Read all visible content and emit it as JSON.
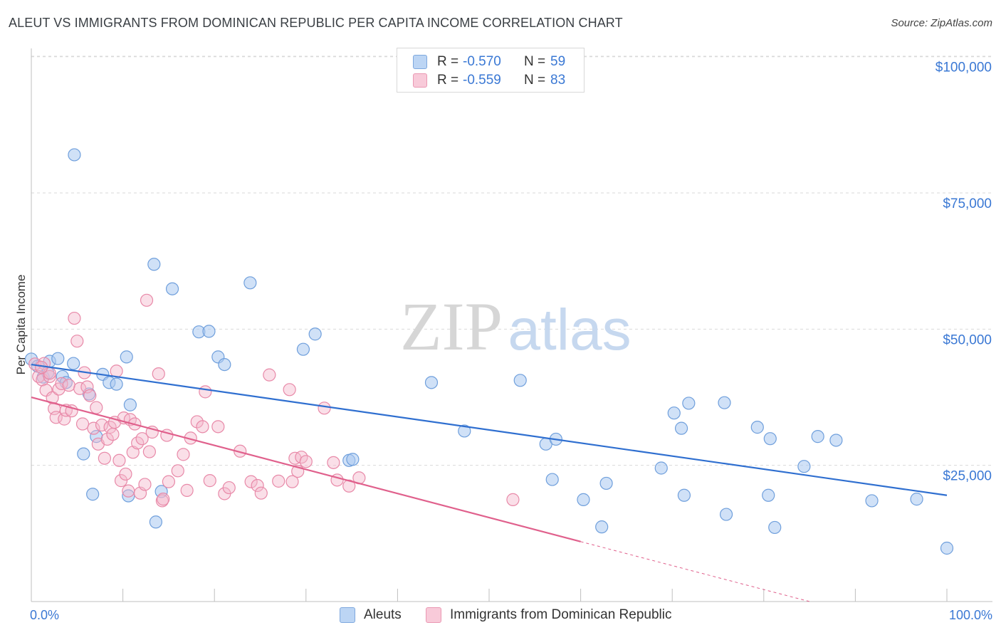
{
  "title": "ALEUT VS IMMIGRANTS FROM DOMINICAN REPUBLIC PER CAPITA INCOME CORRELATION CHART",
  "source": "Source: ZipAtlas.com",
  "watermark": {
    "zip": "ZIP",
    "atlas": "atlas"
  },
  "legend": {
    "rows": [
      {
        "r_label": "R =",
        "r_value": "-0.570",
        "n_label": "N =",
        "n_value": "59"
      },
      {
        "r_label": "R =",
        "r_value": "-0.559",
        "n_label": "N =",
        "n_value": "83"
      }
    ]
  },
  "bottom_legend": {
    "series1": "Aleuts",
    "series2": "Immigrants from Dominican Republic"
  },
  "colors": {
    "blue_fill": "#a9c8f0",
    "blue_stroke": "#6f9fdc",
    "blue_line": "#2f6fd0",
    "pink_fill": "#f5b9cc",
    "pink_stroke": "#e889a8",
    "pink_line": "#e0608c",
    "axis_text": "#3a78d4",
    "grid": "#d9d9d9"
  },
  "chart_data": {
    "type": "scatter",
    "title": "ALEUT VS IMMIGRANTS FROM DOMINICAN REPUBLIC PER CAPITA INCOME CORRELATION CHART",
    "xlabel": "",
    "ylabel": "Per Capita Income",
    "xlim": [
      0,
      100
    ],
    "ylim": [
      0,
      105000
    ],
    "x_tick_labels": [
      {
        "value": 0,
        "label": "0.0%"
      },
      {
        "value": 100,
        "label": "100.0%"
      }
    ],
    "y_ticks": [
      {
        "value": 25000,
        "label": "$25,000"
      },
      {
        "value": 50000,
        "label": "$50,000"
      },
      {
        "value": 75000,
        "label": "$75,000"
      },
      {
        "value": 100000,
        "label": "$100,000"
      }
    ],
    "series": [
      {
        "name": "Aleuts",
        "r": -0.57,
        "n": 59,
        "trend": {
          "x0": 0,
          "y0": 43500,
          "x1": 100,
          "y1": 19500
        },
        "points": [
          [
            0,
            44500
          ],
          [
            0.7,
            43200
          ],
          [
            1.3,
            41200
          ],
          [
            1.8,
            42000
          ],
          [
            2,
            44100
          ],
          [
            2.9,
            44600
          ],
          [
            3.4,
            41300
          ],
          [
            3.8,
            40200
          ],
          [
            4.6,
            43700
          ],
          [
            5.7,
            27100
          ],
          [
            6.3,
            38100
          ],
          [
            6.7,
            19700
          ],
          [
            7.1,
            30300
          ],
          [
            7.8,
            41700
          ],
          [
            8.5,
            40200
          ],
          [
            9.3,
            39900
          ],
          [
            10.4,
            44900
          ],
          [
            10.8,
            36100
          ],
          [
            10.6,
            19400
          ],
          [
            13.4,
            61900
          ],
          [
            13.6,
            14600
          ],
          [
            14.2,
            20200
          ],
          [
            15.4,
            57400
          ],
          [
            18.3,
            49500
          ],
          [
            19.4,
            49600
          ],
          [
            20.4,
            44900
          ],
          [
            21.1,
            43500
          ],
          [
            23.9,
            58500
          ],
          [
            29.7,
            46300
          ],
          [
            31.0,
            49100
          ],
          [
            34.7,
            25900
          ],
          [
            35.1,
            26100
          ],
          [
            43.7,
            40200
          ],
          [
            47.3,
            31300
          ],
          [
            53.4,
            40600
          ],
          [
            56.2,
            28900
          ],
          [
            56.9,
            22400
          ],
          [
            57.3,
            29800
          ],
          [
            60.3,
            18700
          ],
          [
            62.3,
            13700
          ],
          [
            62.8,
            21700
          ],
          [
            68.8,
            24500
          ],
          [
            70.2,
            34600
          ],
          [
            71.0,
            31800
          ],
          [
            71.3,
            19500
          ],
          [
            71.8,
            36400
          ],
          [
            75.7,
            36500
          ],
          [
            75.9,
            16000
          ],
          [
            79.3,
            32000
          ],
          [
            80.5,
            19500
          ],
          [
            80.7,
            29900
          ],
          [
            81.2,
            13600
          ],
          [
            84.4,
            24800
          ],
          [
            85.9,
            30300
          ],
          [
            87.9,
            29600
          ],
          [
            91.8,
            18500
          ],
          [
            96.7,
            18800
          ],
          [
            100,
            9800
          ],
          [
            4.7,
            82000
          ]
        ]
      },
      {
        "name": "Immigrants from Dominican Republic",
        "r": -0.559,
        "n": 83,
        "trend": {
          "x0": 0,
          "y0": 37500,
          "x1": 60,
          "y1": 11000,
          "dash_x1": 85,
          "dash_y1": 0
        },
        "points": [
          [
            0.4,
            43600
          ],
          [
            0.8,
            41300
          ],
          [
            1.2,
            40700
          ],
          [
            1.4,
            43700
          ],
          [
            1.6,
            38800
          ],
          [
            2.0,
            41300
          ],
          [
            2.3,
            37400
          ],
          [
            2.5,
            35400
          ],
          [
            2.7,
            33800
          ],
          [
            3.0,
            39000
          ],
          [
            3.3,
            40000
          ],
          [
            3.6,
            33500
          ],
          [
            3.8,
            35100
          ],
          [
            4.1,
            39700
          ],
          [
            4.4,
            35000
          ],
          [
            4.7,
            52000
          ],
          [
            5.0,
            47800
          ],
          [
            5.3,
            39100
          ],
          [
            5.6,
            32600
          ],
          [
            5.8,
            42000
          ],
          [
            6.1,
            39400
          ],
          [
            6.4,
            37800
          ],
          [
            6.8,
            31800
          ],
          [
            7.1,
            35600
          ],
          [
            7.3,
            28900
          ],
          [
            7.7,
            32400
          ],
          [
            8.0,
            26300
          ],
          [
            8.3,
            29800
          ],
          [
            8.6,
            32000
          ],
          [
            8.9,
            30700
          ],
          [
            9.1,
            32900
          ],
          [
            9.3,
            42300
          ],
          [
            9.6,
            25900
          ],
          [
            9.8,
            22200
          ],
          [
            10.1,
            33700
          ],
          [
            10.3,
            23400
          ],
          [
            10.6,
            20300
          ],
          [
            10.8,
            33400
          ],
          [
            11.1,
            27400
          ],
          [
            11.3,
            32600
          ],
          [
            11.6,
            29100
          ],
          [
            11.9,
            19900
          ],
          [
            12.1,
            29900
          ],
          [
            12.4,
            21500
          ],
          [
            12.6,
            55300
          ],
          [
            12.9,
            27500
          ],
          [
            13.2,
            31100
          ],
          [
            13.9,
            41800
          ],
          [
            14.3,
            18500
          ],
          [
            14.4,
            18800
          ],
          [
            14.8,
            30500
          ],
          [
            15.0,
            22000
          ],
          [
            16.0,
            24000
          ],
          [
            16.6,
            27000
          ],
          [
            17.0,
            20400
          ],
          [
            17.4,
            30000
          ],
          [
            18.1,
            33000
          ],
          [
            18.7,
            32100
          ],
          [
            19.0,
            38500
          ],
          [
            19.5,
            22200
          ],
          [
            20.4,
            32100
          ],
          [
            21.1,
            19800
          ],
          [
            21.6,
            20900
          ],
          [
            22.8,
            27600
          ],
          [
            24.0,
            22000
          ],
          [
            24.7,
            21300
          ],
          [
            25.1,
            19900
          ],
          [
            26.0,
            41600
          ],
          [
            27.0,
            22100
          ],
          [
            28.2,
            38900
          ],
          [
            28.5,
            22000
          ],
          [
            28.8,
            26300
          ],
          [
            29.1,
            23900
          ],
          [
            29.5,
            26500
          ],
          [
            30.0,
            25700
          ],
          [
            32.0,
            35500
          ],
          [
            33.0,
            25500
          ],
          [
            33.4,
            22300
          ],
          [
            34.7,
            21200
          ],
          [
            35.8,
            22700
          ],
          [
            52.6,
            18700
          ],
          [
            2.0,
            41900
          ],
          [
            1.1,
            43000
          ]
        ]
      }
    ]
  }
}
